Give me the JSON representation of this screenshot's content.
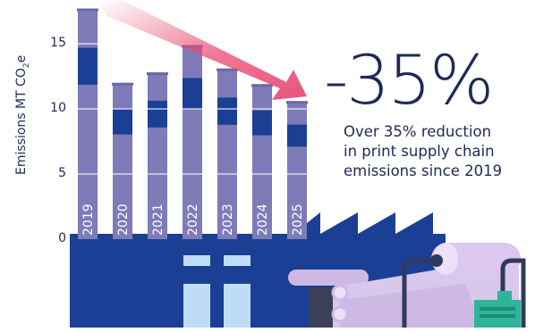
{
  "chart_data": {
    "type": "bar",
    "categories": [
      "2019",
      "2020",
      "2021",
      "2022",
      "2023",
      "2024",
      "2025"
    ],
    "values": [
      17.7,
      12.0,
      12.8,
      14.9,
      13.1,
      11.9,
      10.6
    ],
    "ylabel_main": "Emissions MT CO",
    "ylabel_sub": "2",
    "ylabel_end": "e",
    "yticks": [
      0,
      5,
      10,
      15
    ],
    "ylim": [
      0,
      18
    ],
    "grid": true,
    "trend": "down"
  },
  "headline": "-35%",
  "note_lines": [
    "Over 35% reduction",
    "in print supply chain",
    "emissions since 2019"
  ],
  "colors": {
    "navy": "#1e2a55",
    "factory_blue": "#1b3f94",
    "stack_lavender": "#7e7bb8",
    "stack_band": "#1b3f94",
    "arrow": "#e84b72",
    "paper_roll": "#cdb9e4",
    "machine_gray": "#3b3f58",
    "motor_teal": "#2fb59a"
  }
}
